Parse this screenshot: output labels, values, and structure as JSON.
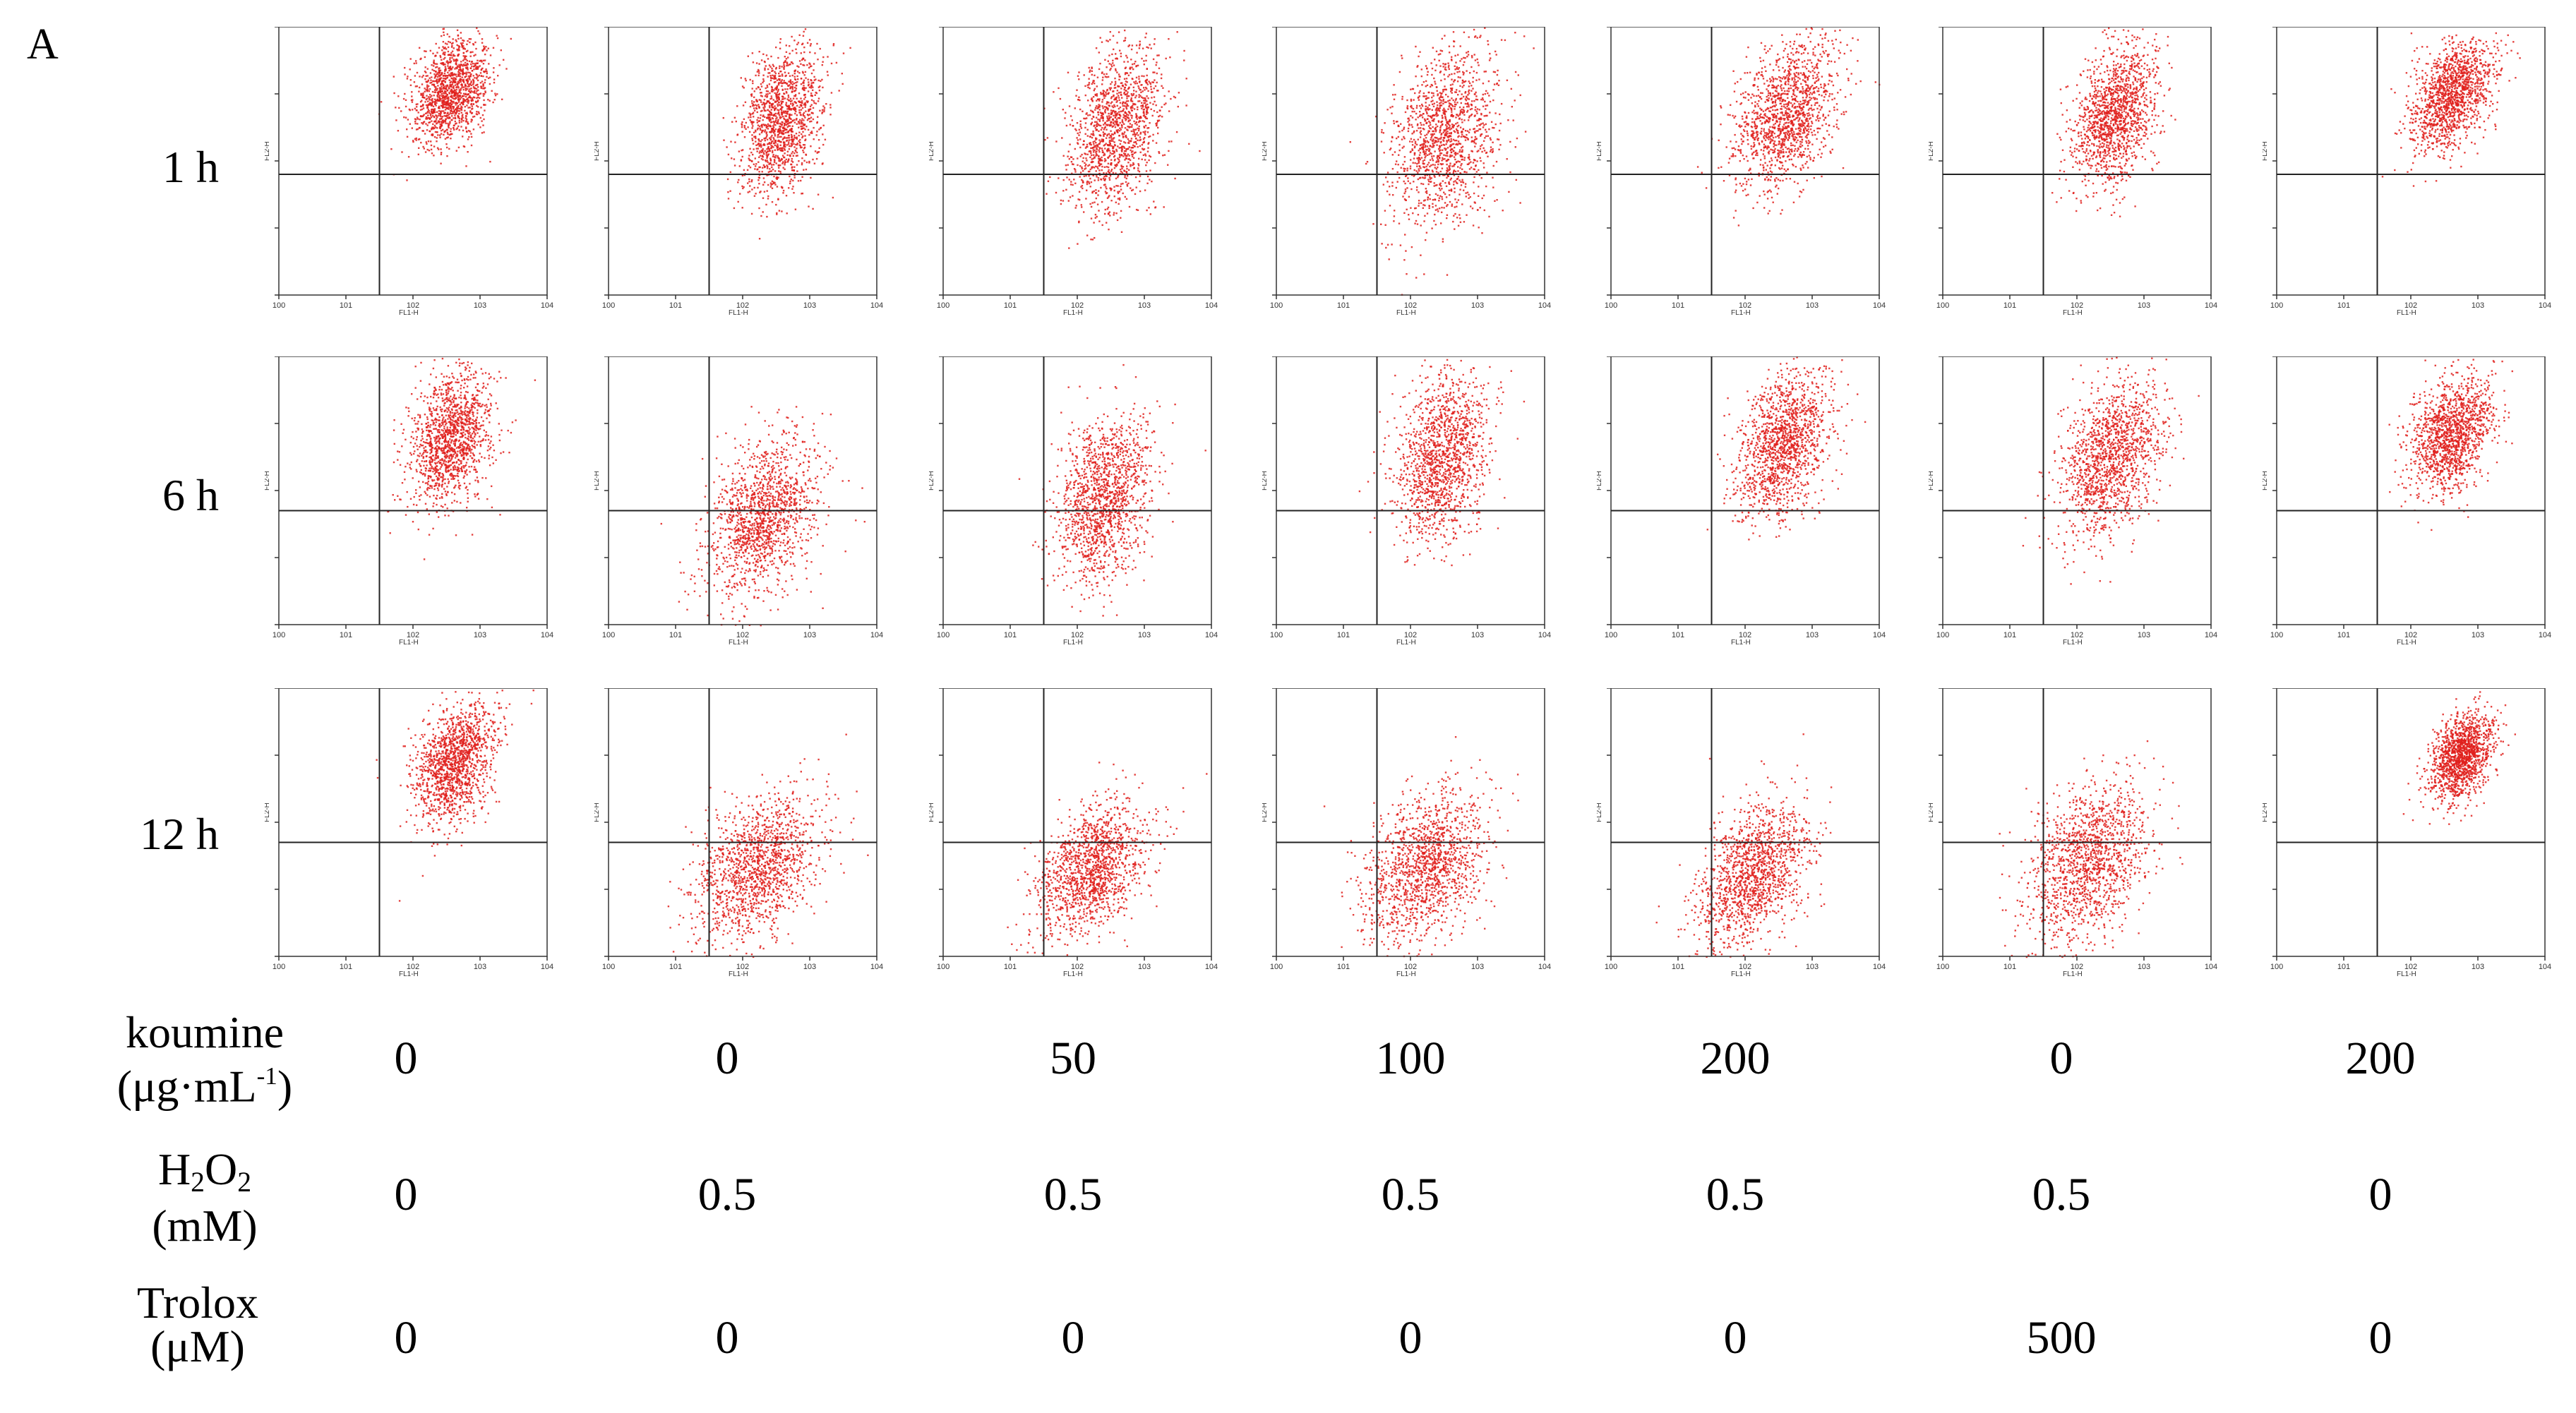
{
  "panel_letter": "A",
  "time_rows": [
    "1 h",
    "6 h",
    "12 h"
  ],
  "conditions": {
    "koumine": {
      "label_main": "koumine",
      "label_unit_prefix": "(μg·mL",
      "label_unit_sup": "-1",
      "label_unit_suffix": ")",
      "values": [
        "0",
        "0",
        "50",
        "100",
        "200",
        "0",
        "200"
      ]
    },
    "h2o2": {
      "label_h": "H",
      "label_sub1": "2",
      "label_o": "O",
      "label_sub2": "2",
      "label_unit": "(mM)",
      "values": [
        "0",
        "0.5",
        "0.5",
        "0.5",
        "0.5",
        "0.5",
        "0"
      ]
    },
    "trolox": {
      "label_main": "Trolox",
      "label_unit": "(μM)",
      "values": [
        "0",
        "0",
        "0",
        "0",
        "0",
        "500",
        "0"
      ]
    }
  },
  "chart_data": {
    "type": "scatter",
    "description_axes": {
      "xlabel": "FL1-H",
      "ylabel": "FL2-H",
      "xscale": "log",
      "yscale": "log",
      "xlim": [
        1,
        10000
      ],
      "ylim": [
        1,
        10000
      ]
    },
    "dot_color": "#e0201c",
    "grid": {
      "rows": 3,
      "cols": 7
    },
    "panels": [
      [
        {
          "cx": 2.55,
          "cy": 3.05,
          "sx": 0.28,
          "sy": 0.38,
          "gx": 1.5,
          "gy": 1.8
        },
        {
          "cx": 2.55,
          "cy": 2.6,
          "sx": 0.3,
          "sy": 0.55,
          "gx": 1.5,
          "gy": 1.8
        },
        {
          "cx": 2.55,
          "cy": 2.5,
          "sx": 0.35,
          "sy": 0.6,
          "gx": 1.5,
          "gy": 1.8
        },
        {
          "cx": 2.5,
          "cy": 2.4,
          "sx": 0.4,
          "sy": 0.65,
          "gx": 1.5,
          "gy": 1.8
        },
        {
          "cx": 2.6,
          "cy": 2.7,
          "sx": 0.38,
          "sy": 0.5,
          "gx": 1.5,
          "gy": 1.8
        },
        {
          "cx": 2.55,
          "cy": 2.7,
          "sx": 0.3,
          "sy": 0.5,
          "gx": 1.5,
          "gy": 1.8
        },
        {
          "cx": 2.6,
          "cy": 3.0,
          "sx": 0.3,
          "sy": 0.38,
          "gx": 1.5,
          "gy": 1.8
        }
      ],
      [
        {
          "cx": 2.55,
          "cy": 2.8,
          "sx": 0.3,
          "sy": 0.48,
          "gx": 1.5,
          "gy": 1.7
        },
        {
          "cx": 2.3,
          "cy": 1.6,
          "sx": 0.4,
          "sy": 0.55,
          "gx": 1.5,
          "gy": 1.7
        },
        {
          "cx": 2.4,
          "cy": 1.9,
          "sx": 0.33,
          "sy": 0.6,
          "gx": 1.5,
          "gy": 1.7
        },
        {
          "cx": 2.45,
          "cy": 2.5,
          "sx": 0.35,
          "sy": 0.6,
          "gx": 1.5,
          "gy": 1.7
        },
        {
          "cx": 2.55,
          "cy": 2.7,
          "sx": 0.35,
          "sy": 0.5,
          "gx": 1.5,
          "gy": 1.7
        },
        {
          "cx": 2.5,
          "cy": 2.5,
          "sx": 0.38,
          "sy": 0.55,
          "gx": 1.5,
          "gy": 1.7
        },
        {
          "cx": 2.6,
          "cy": 2.85,
          "sx": 0.3,
          "sy": 0.42,
          "gx": 1.5,
          "gy": 1.7
        }
      ],
      [
        {
          "cx": 2.6,
          "cy": 2.9,
          "sx": 0.3,
          "sy": 0.42,
          "gx": 1.5,
          "gy": 1.7
        },
        {
          "cx": 2.2,
          "cy": 1.3,
          "sx": 0.45,
          "sy": 0.5,
          "gx": 1.5,
          "gy": 1.7
        },
        {
          "cx": 2.2,
          "cy": 1.3,
          "sx": 0.4,
          "sy": 0.45,
          "gx": 1.5,
          "gy": 1.7
        },
        {
          "cx": 2.2,
          "cy": 1.35,
          "sx": 0.45,
          "sy": 0.55,
          "gx": 1.5,
          "gy": 1.7
        },
        {
          "cx": 2.1,
          "cy": 1.2,
          "sx": 0.4,
          "sy": 0.5,
          "gx": 1.5,
          "gy": 1.7
        },
        {
          "cx": 2.15,
          "cy": 1.4,
          "sx": 0.45,
          "sy": 0.55,
          "gx": 1.5,
          "gy": 1.7
        },
        {
          "cx": 2.75,
          "cy": 3.0,
          "sx": 0.22,
          "sy": 0.3,
          "gx": 1.5,
          "gy": 1.7
        }
      ]
    ]
  }
}
